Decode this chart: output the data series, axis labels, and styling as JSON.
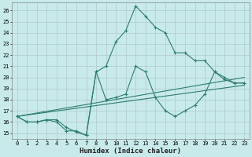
{
  "xlabel": "Humidex (Indice chaleur)",
  "background_color": "#c8eaea",
  "grid_color": "#b0c8c8",
  "line_color": "#2d7d6e",
  "xlim": [
    -0.5,
    23.5
  ],
  "ylim": [
    14.5,
    26.7
  ],
  "xticks": [
    0,
    1,
    2,
    3,
    4,
    5,
    6,
    7,
    8,
    9,
    10,
    11,
    12,
    13,
    14,
    15,
    16,
    17,
    18,
    19,
    20,
    21,
    22,
    23
  ],
  "yticks": [
    15,
    16,
    17,
    18,
    19,
    20,
    21,
    22,
    23,
    24,
    25,
    26
  ],
  "curves": [
    {
      "x": [
        0,
        1,
        2,
        3,
        4,
        5,
        6,
        7,
        8,
        9,
        10,
        11,
        12,
        13,
        14,
        15,
        16,
        17,
        18,
        19,
        20,
        21,
        22,
        23
      ],
      "y": [
        16.5,
        16.0,
        16.0,
        16.2,
        16.2,
        15.5,
        15.1,
        14.8,
        20.5,
        21.0,
        23.2,
        24.2,
        26.4,
        25.5,
        24.5,
        24.0,
        22.2,
        22.2,
        21.5,
        21.5,
        20.5,
        19.8,
        19.5,
        19.5
      ],
      "has_markers": true
    },
    {
      "x": [
        0,
        1,
        2,
        3,
        4,
        5,
        6,
        7,
        8,
        9,
        10,
        11,
        12,
        13,
        14,
        15,
        16,
        17,
        18,
        19,
        20,
        21,
        22,
        23
      ],
      "y": [
        16.5,
        16.0,
        16.0,
        16.2,
        16.0,
        15.2,
        15.2,
        14.8,
        20.5,
        18.0,
        18.2,
        18.5,
        21.0,
        20.5,
        18.2,
        17.0,
        16.5,
        17.0,
        17.5,
        18.5,
        20.5,
        20.0,
        19.5,
        19.5
      ],
      "has_markers": true
    },
    {
      "x": [
        0,
        23
      ],
      "y": [
        16.5,
        20.0
      ],
      "has_markers": false
    },
    {
      "x": [
        0,
        23
      ],
      "y": [
        16.5,
        19.3
      ],
      "has_markers": false
    }
  ]
}
